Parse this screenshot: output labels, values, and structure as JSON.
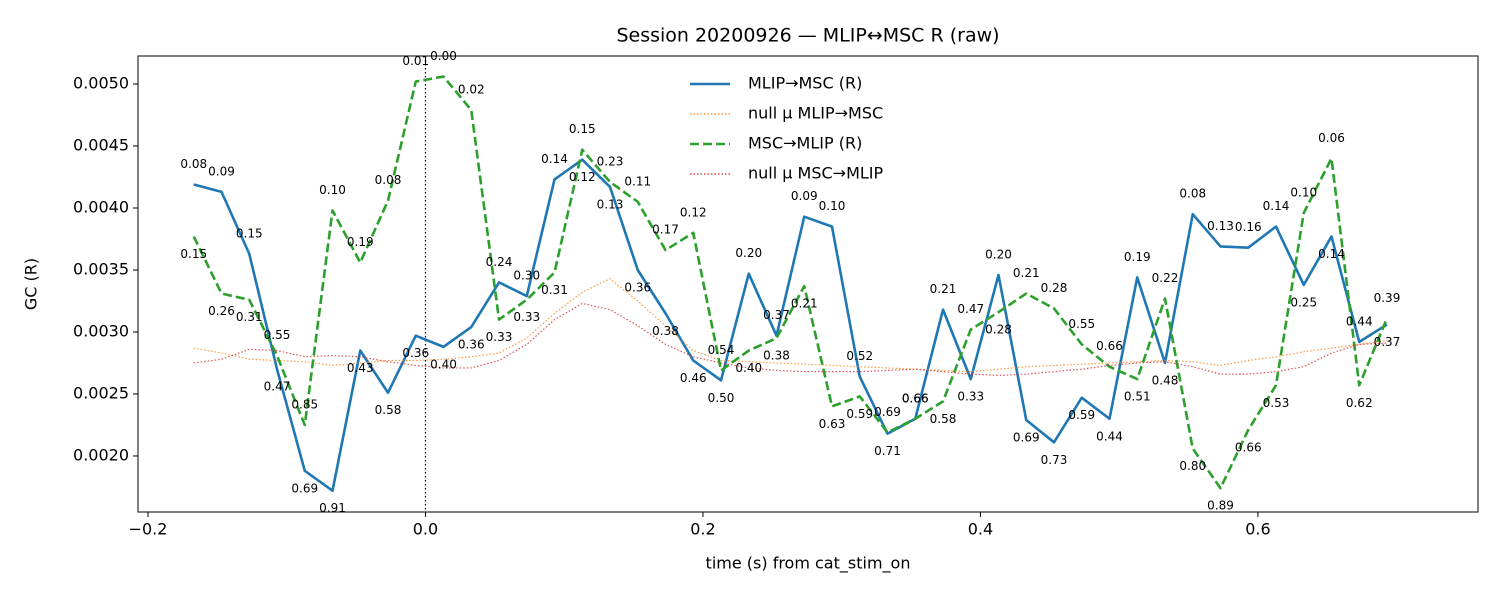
{
  "chart_data": {
    "type": "line",
    "title": "Session 20200926 — MLIP↔MSC R (raw)",
    "x_label": "time (s) from cat_stim_on",
    "y_label": "GC (R)",
    "x": [
      -0.167,
      -0.147,
      -0.127,
      -0.107,
      -0.087,
      -0.067,
      -0.047,
      -0.027,
      -0.007,
      0.013,
      0.033,
      0.053,
      0.073,
      0.093,
      0.113,
      0.133,
      0.153,
      0.173,
      0.193,
      0.213,
      0.233,
      0.253,
      0.273,
      0.293,
      0.313,
      0.333,
      0.353,
      0.373,
      0.393,
      0.413,
      0.433,
      0.453,
      0.473,
      0.493,
      0.513,
      0.533,
      0.553,
      0.573,
      0.593,
      0.613,
      0.633,
      0.653,
      0.673,
      0.693
    ],
    "xlim": [
      -0.2072,
      0.7586
    ],
    "xticks": [
      {
        "value": -0.2,
        "label": "−0.2"
      },
      {
        "value": 0,
        "label": "0.0"
      },
      0.2,
      0.4,
      0.6
    ],
    "ylim": [
      0.001548,
      0.005226
    ],
    "yticks": [
      {
        "value": 0.002,
        "label": "0.0020"
      },
      {
        "value": 0.0025,
        "label": "0.0025"
      },
      {
        "value": 0.003,
        "label": "0.0030"
      },
      {
        "value": 0.0035,
        "label": "0.0035"
      },
      {
        "value": 0.004,
        "label": "0.0040"
      },
      {
        "value": 0.0045,
        "label": "0.0045"
      },
      {
        "value": 0.005,
        "label": "0.0050"
      }
    ],
    "reference_line_x": 0,
    "legend": "upper center",
    "series": [
      {
        "name": "MLIP→MSC (R)",
        "color": "#1f77b4",
        "linestyle": "solid",
        "values": [
          0.00419,
          0.00413,
          0.00363,
          0.0027,
          0.00188,
          0.00172,
          0.00285,
          0.00251,
          0.00297,
          0.00288,
          0.00304,
          0.0034,
          0.00329,
          0.00423,
          0.00439,
          0.00417,
          0.0035,
          0.00315,
          0.00277,
          0.00261,
          0.00347,
          0.00297,
          0.00393,
          0.00385,
          0.00264,
          0.00218,
          0.0023,
          0.00318,
          0.00262,
          0.00346,
          0.00229,
          0.00211,
          0.00247,
          0.0023,
          0.00344,
          0.00275,
          0.00395,
          0.00369,
          0.00368,
          0.00385,
          0.00338,
          0.00377,
          0.00292,
          0.00306
        ],
        "annotations": [
          "0.08",
          "0.09",
          "0.15",
          "0.47",
          "0.69",
          "0.91",
          "0.43",
          "0.58",
          "0.36",
          "0.40",
          "0.36",
          "0.24",
          "0.30",
          "0.14",
          "0.12",
          "0.13",
          "0.36",
          "0.38",
          "0.46",
          "0.50",
          "0.20",
          "0.37",
          "0.09",
          "0.10",
          "0.52",
          "0.71",
          "0.66",
          "0.21",
          "0.33",
          "0.20",
          "0.69",
          "0.73",
          "0.59",
          "0.44",
          "0.19",
          "0.48",
          "0.08",
          "0.13",
          "0.16",
          "0.14",
          "0.25",
          "0.14",
          "0.44",
          "0.37"
        ]
      },
      {
        "name": "null μ MLIP→MSC",
        "color": "#ff7f0e",
        "linestyle": "dotted",
        "values": [
          0.00287,
          0.00283,
          0.00278,
          0.00277,
          0.00276,
          0.00273,
          0.00275,
          0.00277,
          0.00277,
          0.00278,
          0.0028,
          0.00283,
          0.00295,
          0.00315,
          0.00332,
          0.00343,
          0.00325,
          0.00305,
          0.00285,
          0.00277,
          0.00276,
          0.00275,
          0.00274,
          0.00273,
          0.00272,
          0.00271,
          0.0027,
          0.00269,
          0.00268,
          0.0027,
          0.00272,
          0.00273,
          0.00274,
          0.00275,
          0.00276,
          0.00277,
          0.00276,
          0.00273,
          0.00277,
          0.0028,
          0.00284,
          0.00287,
          0.0029,
          0.00293
        ]
      },
      {
        "name": "MSC→MLIP (R)",
        "color": "#2ca02c",
        "linestyle": "dashed",
        "values": [
          0.00377,
          0.00331,
          0.00326,
          0.00281,
          0.00225,
          0.00398,
          0.00356,
          0.00406,
          0.00502,
          0.00506,
          0.00479,
          0.0031,
          0.00326,
          0.00348,
          0.00447,
          0.00421,
          0.00405,
          0.00366,
          0.0038,
          0.00269,
          0.00285,
          0.00295,
          0.00337,
          0.0024,
          0.00248,
          0.00219,
          0.0023,
          0.00244,
          0.00302,
          0.00316,
          0.00331,
          0.00319,
          0.0029,
          0.00272,
          0.00262,
          0.00327,
          0.00206,
          0.00174,
          0.00221,
          0.00257,
          0.00396,
          0.0044,
          0.00257,
          0.00311
        ],
        "annotations": [
          "0.15",
          "0.26",
          "0.31",
          "0.55",
          "0.85",
          "0.10",
          "0.19",
          "0.08",
          "0.01",
          "0.00",
          "0.02",
          "0.33",
          "0.33",
          "0.31",
          "0.15",
          "0.23",
          "0.11",
          "0.17",
          "0.12",
          "0.54",
          "0.40",
          "0.38",
          "0.21",
          "0.63",
          "0.59",
          "0.69",
          "0.66",
          "0.58",
          "0.47",
          "0.28",
          "0.21",
          "0.28",
          "0.55",
          "0.66",
          "0.51",
          "0.22",
          "0.80",
          "0.89",
          "0.66",
          "0.53",
          "0.10",
          "0.06",
          "0.62",
          "0.39"
        ]
      },
      {
        "name": "null μ MSC→MLIP",
        "color": "#d62728",
        "linestyle": "dotted",
        "values": [
          0.00275,
          0.00278,
          0.00286,
          0.00285,
          0.0028,
          0.00281,
          0.0028,
          0.00276,
          0.00273,
          0.00271,
          0.00271,
          0.00277,
          0.0029,
          0.0031,
          0.00323,
          0.00318,
          0.00305,
          0.0029,
          0.0028,
          0.00275,
          0.00271,
          0.00269,
          0.00268,
          0.00268,
          0.00268,
          0.00269,
          0.0027,
          0.00268,
          0.00266,
          0.00265,
          0.00266,
          0.00268,
          0.0027,
          0.00273,
          0.00275,
          0.00276,
          0.00272,
          0.00266,
          0.00266,
          0.00268,
          0.00272,
          0.00283,
          0.0029,
          0.00291
        ]
      }
    ]
  }
}
